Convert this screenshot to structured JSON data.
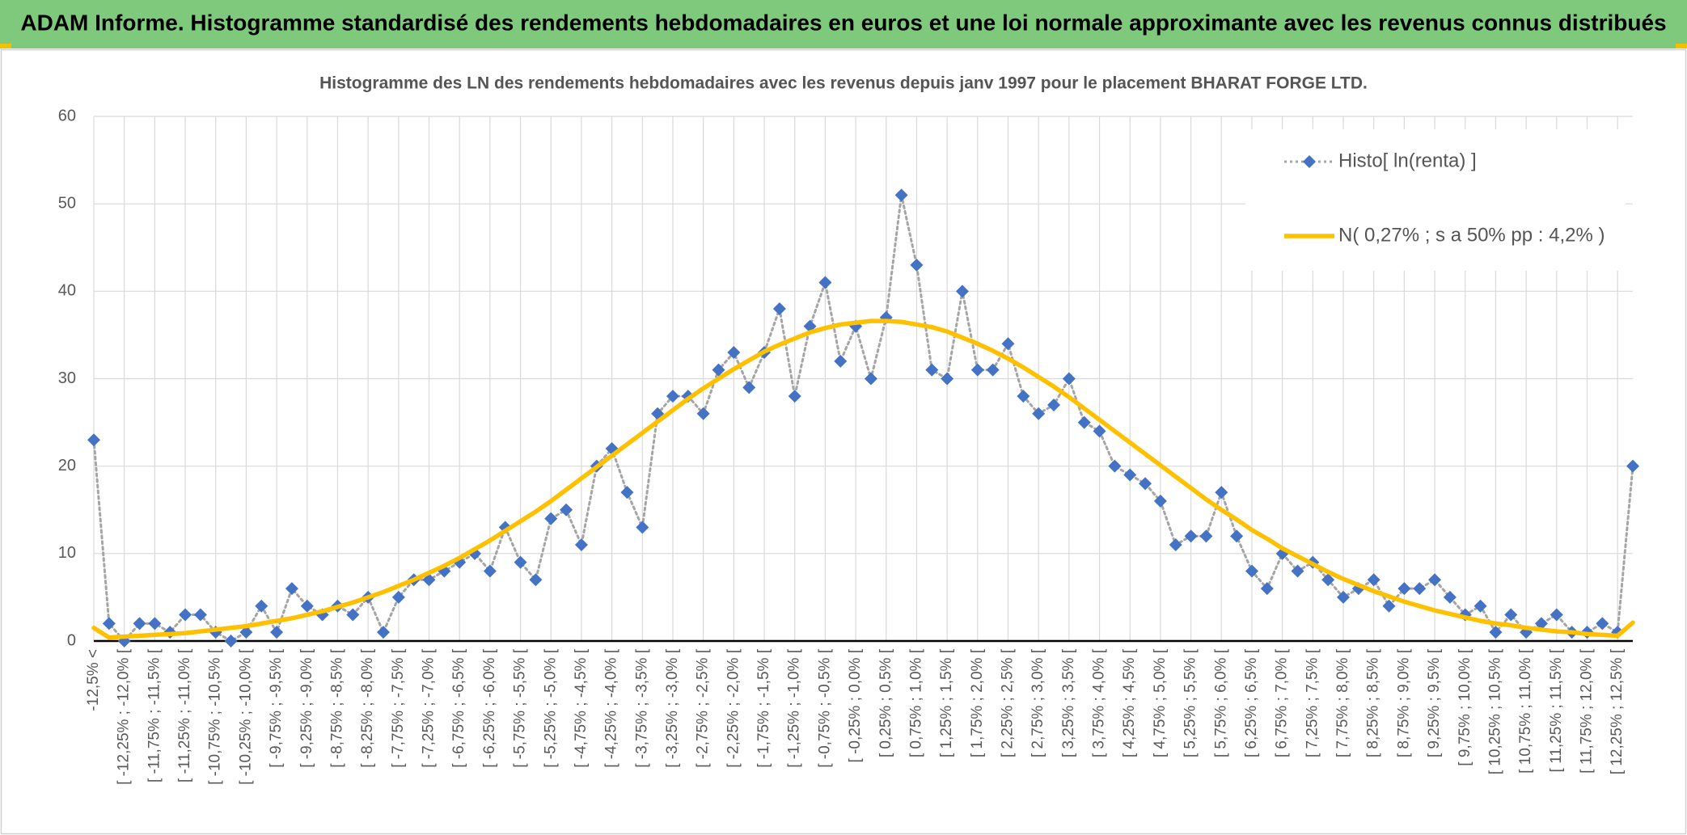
{
  "header": {
    "title": "ADAM Informe. Histogramme standardisé des rendements hebdomadaires en euros et une loi normale approximante avec les revenus connus distribués"
  },
  "chart_data": {
    "type": "line",
    "title": "Histogramme des LN des rendements hebdomadaires avec les revenus depuis janv 1997 pour le placement BHARAT FORGE LTD.",
    "categories": [
      "-12,5% <",
      null,
      "[ -12,25% ; -12,0% [",
      null,
      "[ -11,75% ; -11,5% [",
      null,
      "[ -11,25% ; -11,0% [",
      null,
      "[ -10,75% ; -10,5% [",
      null,
      "[ -10,25% ; -10,0% [",
      null,
      "[ -9,75% ; -9,5% [",
      null,
      "[ -9,25% ; -9,0% [",
      null,
      "[ -8,75% ; -8,5% [",
      null,
      "[ -8,25% ; -8,0% [",
      null,
      "[ -7,75% ; -7,5% [",
      null,
      "[ -7,25% ; -7,0% [",
      null,
      "[ -6,75% ; -6,5% [",
      null,
      "[ -6,25% ; -6,0% [",
      null,
      "[ -5,75% ; -5,5% [",
      null,
      "[ -5,25% ; -5,0% [",
      null,
      "[ -4,75% ; -4,5% [",
      null,
      "[ -4,25% ; -4,0% [",
      null,
      "[ -3,75% ; -3,5% [",
      null,
      "[ -3,25% ; -3,0% [",
      null,
      "[ -2,75% ; -2,5% [",
      null,
      "[ -2,25% ; -2,0% [",
      null,
      "[ -1,75% ; -1,5% [",
      null,
      "[ -1,25% ; -1,0% [",
      null,
      "[ -0,75% ; -0,5% [",
      null,
      "[ -0,25% ; 0,0% [",
      null,
      "[ 0,25% ; 0,5% [",
      null,
      "[ 0,75% ; 1,0% [",
      null,
      "[ 1,25% ; 1,5% [",
      null,
      "[ 1,75% ; 2,0% [",
      null,
      "[ 2,25% ; 2,5% [",
      null,
      "[ 2,75% ; 3,0% [",
      null,
      "[ 3,25% ; 3,5% [",
      null,
      "[ 3,75% ; 4,0% [",
      null,
      "[ 4,25% ; 4,5% [",
      null,
      "[ 4,75% ; 5,0% [",
      null,
      "[ 5,25% ; 5,5% [",
      null,
      "[ 5,75% ; 6,0% [",
      null,
      "[ 6,25% ; 6,5% [",
      null,
      "[ 6,75% ; 7,0% [",
      null,
      "[ 7,25% ; 7,5% [",
      null,
      "[ 7,75% ; 8,0% [",
      null,
      "[ 8,25% ; 8,5% [",
      null,
      "[ 8,75% ; 9,0% [",
      null,
      "[ 9,25% ; 9,5% [",
      null,
      "[ 9,75% ; 10,0% [",
      null,
      "[ 10,25% ; 10,5% [",
      null,
      "[ 10,75% ; 11,0% [",
      null,
      "[ 11,25% ; 11,5% [",
      null,
      "[ 11,75% ; 12,0% [",
      null,
      "[ 12,25% ; 12,5% [",
      null
    ],
    "series": [
      {
        "name": "Histo[ ln(renta) ]",
        "color": "#4472c4",
        "line_color": "#a5a5a5",
        "line_style": "dotted",
        "marker": "diamond",
        "values": [
          23,
          2,
          0,
          2,
          2,
          1,
          3,
          3,
          1,
          0,
          1,
          4,
          1,
          6,
          4,
          3,
          4,
          3,
          5,
          1,
          5,
          7,
          7,
          8,
          9,
          10,
          8,
          13,
          9,
          7,
          14,
          15,
          11,
          20,
          22,
          17,
          13,
          26,
          28,
          28,
          26,
          31,
          33,
          29,
          33,
          38,
          28,
          36,
          41,
          32,
          36,
          30,
          37,
          51,
          43,
          31,
          30,
          40,
          31,
          31,
          34,
          28,
          26,
          27,
          30,
          25,
          24,
          20,
          19,
          18,
          16,
          11,
          12,
          12,
          17,
          12,
          8,
          6,
          10,
          8,
          9,
          7,
          5,
          6,
          7,
          4,
          6,
          6,
          7,
          5,
          3,
          4,
          1,
          3,
          1,
          2,
          3,
          1,
          1,
          2,
          1,
          20
        ]
      },
      {
        "name": "N( 0,27% ; s a 50% pp : 4,2% )",
        "color": "#ffc000",
        "line_style": "solid",
        "marker": "none",
        "values": [
          1.5,
          0.4,
          0.5,
          0.6,
          0.7,
          0.8,
          0.9,
          1.1,
          1.3,
          1.5,
          1.7,
          2.0,
          2.3,
          2.6,
          3.0,
          3.4,
          3.9,
          4.4,
          5.0,
          5.6,
          6.3,
          7.0,
          7.8,
          8.6,
          9.5,
          10.5,
          11.5,
          12.6,
          13.7,
          14.8,
          16.0,
          17.3,
          18.6,
          19.9,
          21.2,
          22.5,
          23.8,
          25.1,
          26.4,
          27.7,
          28.9,
          30.0,
          31.1,
          32.1,
          33.1,
          33.9,
          34.6,
          35.3,
          35.8,
          36.2,
          36.4,
          36.6,
          36.6,
          36.5,
          36.2,
          35.9,
          35.4,
          34.7,
          34.0,
          33.2,
          32.3,
          31.3,
          30.2,
          29.1,
          27.9,
          26.6,
          25.3,
          24.0,
          22.7,
          21.4,
          20.1,
          18.8,
          17.5,
          16.2,
          15.0,
          13.9,
          12.7,
          11.7,
          10.6,
          9.7,
          8.8,
          7.9,
          7.1,
          6.4,
          5.7,
          5.1,
          4.5,
          4.0,
          3.5,
          3.1,
          2.7,
          2.3,
          2.0,
          1.8,
          1.5,
          1.3,
          1.1,
          1.0,
          0.8,
          0.7,
          0.6,
          2.1
        ]
      }
    ],
    "ylim": [
      0,
      60
    ],
    "yticks": [
      0,
      10,
      20,
      30,
      40,
      50,
      60
    ],
    "grid": true,
    "legend": "upper right"
  }
}
